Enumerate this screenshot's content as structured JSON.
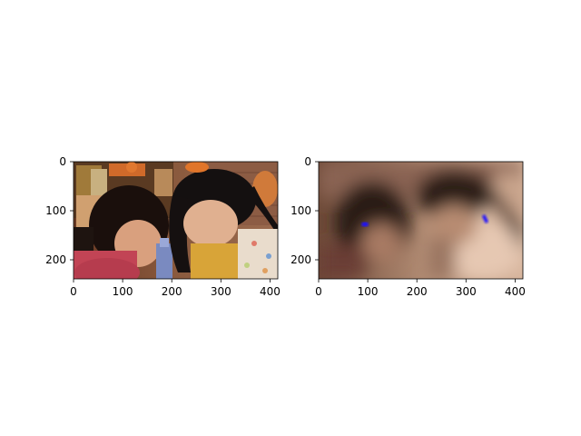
{
  "figure": {
    "background": "#ffffff",
    "panels": [
      {
        "name": "original-image",
        "content": "photo of two girls looking down at a small object, brick wall and decorations in background",
        "x_ticks": [
          "0",
          "100",
          "200",
          "300",
          "400"
        ],
        "y_ticks": [
          "0",
          "100",
          "200"
        ],
        "x_range": [
          0,
          416
        ],
        "y_range": [
          240,
          0
        ]
      },
      {
        "name": "blurred-heatmap",
        "content": "heavily blurred copper-toned version of the photo with two small blue marks",
        "x_ticks": [
          "0",
          "100",
          "200",
          "300",
          "400"
        ],
        "y_ticks": [
          "0",
          "100",
          "200"
        ],
        "x_range": [
          0,
          416
        ],
        "y_range": [
          240,
          0
        ],
        "markers": [
          {
            "x": 95,
            "y": 128,
            "color": "#1a10ff"
          },
          {
            "x": 338,
            "y": 118,
            "color": "#1a10ff"
          }
        ]
      }
    ]
  }
}
